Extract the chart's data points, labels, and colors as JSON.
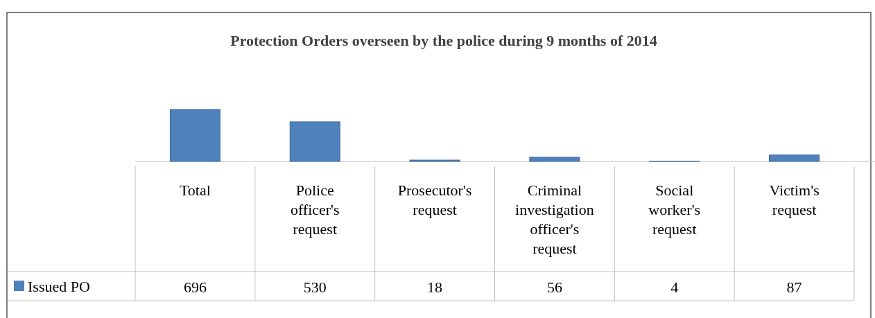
{
  "chart_data": {
    "type": "bar",
    "title": "Protection Orders overseen by the police during 9 months of 2014",
    "categories": [
      "Total",
      "Police officer's request",
      "Prosecutor's request",
      "Criminal investigation officer's request",
      "Social worker's request",
      "Victim's request"
    ],
    "series": [
      {
        "name": "Issued PO",
        "color": "#4f81bd",
        "values": [
          696,
          530,
          18,
          56,
          4,
          87
        ]
      }
    ],
    "data_labels": true
  }
}
